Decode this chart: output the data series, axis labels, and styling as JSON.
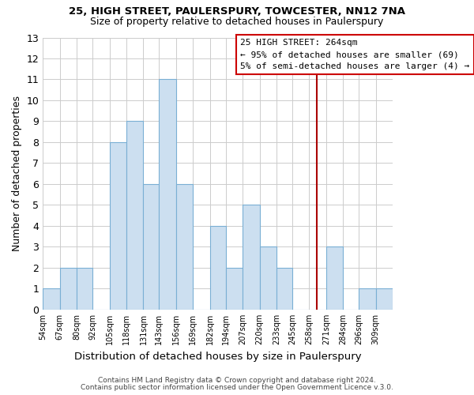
{
  "title1": "25, HIGH STREET, PAULERSPURY, TOWCESTER, NN12 7NA",
  "title2": "Size of property relative to detached houses in Paulerspury",
  "xlabel": "Distribution of detached houses by size in Paulerspury",
  "ylabel": "Number of detached properties",
  "bin_labels": [
    "54sqm",
    "67sqm",
    "80sqm",
    "92sqm",
    "105sqm",
    "118sqm",
    "131sqm",
    "143sqm",
    "156sqm",
    "169sqm",
    "182sqm",
    "194sqm",
    "207sqm",
    "220sqm",
    "233sqm",
    "245sqm",
    "258sqm",
    "271sqm",
    "284sqm",
    "296sqm",
    "309sqm"
  ],
  "bin_edges": [
    54,
    67,
    80,
    92,
    105,
    118,
    131,
    143,
    156,
    169,
    182,
    194,
    207,
    220,
    233,
    245,
    258,
    271,
    284,
    296,
    309
  ],
  "bar_heights": [
    1,
    2,
    2,
    0,
    8,
    9,
    6,
    11,
    6,
    0,
    4,
    2,
    5,
    3,
    2,
    0,
    0,
    3,
    0,
    1,
    1
  ],
  "bar_color": "#ccdff0",
  "bar_edgecolor": "#7aafd4",
  "grid_color": "#cccccc",
  "vline_x": 264,
  "vline_color": "#aa0000",
  "ylim": [
    0,
    13
  ],
  "yticks": [
    0,
    1,
    2,
    3,
    4,
    5,
    6,
    7,
    8,
    9,
    10,
    11,
    12,
    13
  ],
  "annotation_title": "25 HIGH STREET: 264sqm",
  "annotation_line1": "← 95% of detached houses are smaller (69)",
  "annotation_line2": "5% of semi-detached houses are larger (4) →",
  "annotation_box_color": "#cc0000",
  "footnote1": "Contains HM Land Registry data © Crown copyright and database right 2024.",
  "footnote2": "Contains public sector information licensed under the Open Government Licence v.3.0."
}
